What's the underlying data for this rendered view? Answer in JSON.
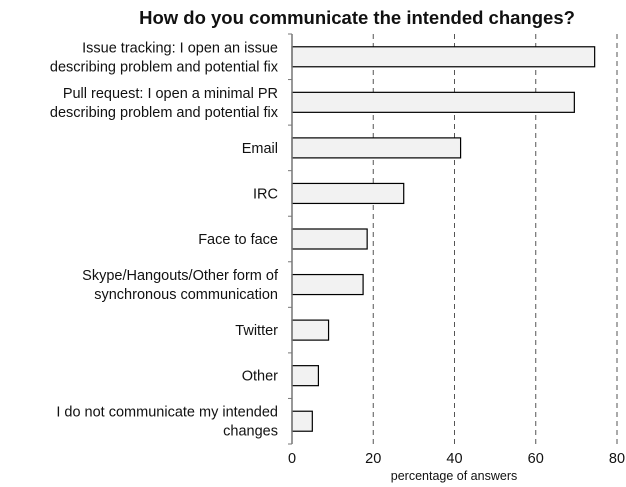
{
  "chart_data": {
    "type": "bar",
    "orientation": "horizontal",
    "title": "How do you communicate the intended changes?",
    "xlabel": "percentage of answers",
    "ylabel": "",
    "xlim": [
      0,
      80
    ],
    "xticks": [
      0,
      20,
      40,
      60,
      80
    ],
    "grid": "vertical dashed",
    "categories": [
      [
        "Issue tracking: I open an issue",
        "describing problem and potential fix"
      ],
      [
        "Pull request: I open a minimal PR",
        "describing problem and potential fix"
      ],
      [
        "Email"
      ],
      [
        "IRC"
      ],
      [
        "Face to face"
      ],
      [
        "Skype/Hangouts/Other form of",
        "synchronous communication"
      ],
      [
        "Twitter"
      ],
      [
        "Other"
      ],
      [
        "I do not communicate my intended",
        "changes"
      ]
    ],
    "values": [
      74.5,
      69.5,
      41.5,
      27.5,
      18.5,
      17.5,
      9,
      6.5,
      5
    ],
    "bar_fill": "#f2f2f2",
    "bar_stroke": "#000000"
  }
}
